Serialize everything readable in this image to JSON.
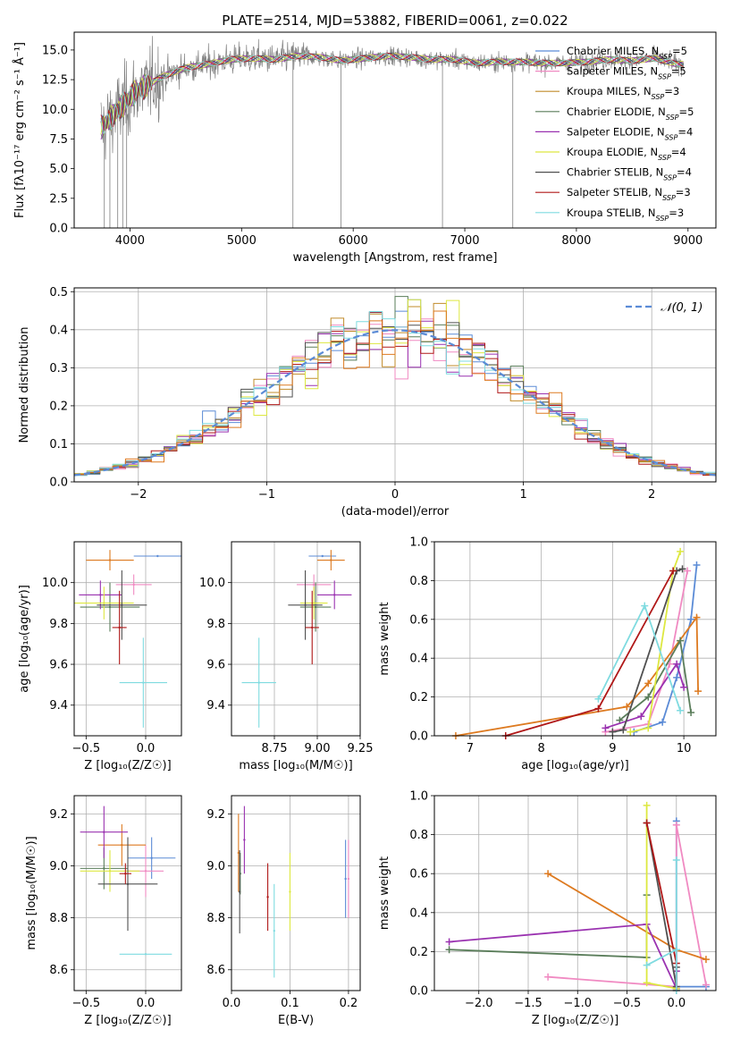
{
  "chart_data": [
    {
      "type": "line",
      "title": "PLATE=2514, MJD=53882, FIBERID=0061, z=0.022",
      "xlabel": "wavelength [Angstrom, rest frame]",
      "ylabel": "Flux [fλ10⁻¹⁷ erg cm⁻² s⁻¹ Å⁻¹]",
      "xlim": [
        3500,
        9250
      ],
      "ylim": [
        0,
        16.5
      ],
      "xticks": [
        4000,
        5000,
        6000,
        7000,
        8000,
        9000
      ],
      "yticks": [
        0.0,
        2.5,
        5.0,
        7.5,
        10.0,
        12.5,
        15.0
      ],
      "legend_position": "upper-right",
      "series": [
        {
          "name": "Chabrier MILES, N_SSP=5",
          "color": "#5b8bd6"
        },
        {
          "name": "Salpeter MILES, N_SSP=5",
          "color": "#f08ac2"
        },
        {
          "name": "Kroupa MILES, N_SSP=3",
          "color": "#c18b2a"
        },
        {
          "name": "Chabrier ELODIE, N_SSP=5",
          "color": "#5a7d5a"
        },
        {
          "name": "Salpeter ELODIE, N_SSP=4",
          "color": "#9a32b0"
        },
        {
          "name": "Kroupa ELODIE, N_SSP=4",
          "color": "#dde840"
        },
        {
          "name": "Chabrier STELIB, N_SSP=4",
          "color": "#505050"
        },
        {
          "name": "Salpeter STELIB, N_SSP=3",
          "color": "#b01818"
        },
        {
          "name": "Kroupa STELIB, N_SSP=3",
          "color": "#7fdbe0"
        }
      ],
      "data_color": "#808080",
      "continuum": {
        "x": [
          3750,
          3850,
          3950,
          4050,
          4150,
          4300,
          4500,
          4700,
          4900,
          5100,
          5300,
          5500,
          5700,
          5900,
          6100,
          6300,
          6500,
          6700,
          6900,
          7100,
          7300,
          7500,
          7700,
          7900,
          8100,
          8300,
          8500,
          8700,
          8900
        ],
        "y": [
          8.5,
          9.5,
          10.5,
          11.5,
          12.0,
          12.8,
          13.5,
          13.8,
          14.2,
          14.3,
          14.2,
          14.5,
          14.4,
          14.1,
          14.3,
          14.5,
          14.4,
          14.2,
          14.2,
          13.9,
          14.0,
          14.0,
          13.9,
          13.9,
          14.0,
          14.2,
          14.1,
          14.3,
          13.8
        ]
      }
    },
    {
      "type": "step",
      "xlabel": "(data-model)/error",
      "ylabel": "Normed distribution",
      "xlim": [
        -2.5,
        2.5
      ],
      "ylim": [
        0,
        0.51
      ],
      "xticks": [
        -2,
        -1,
        0,
        1,
        2
      ],
      "yticks": [
        0.0,
        0.1,
        0.2,
        0.3,
        0.4,
        0.5
      ],
      "grid": true,
      "reference": {
        "name": "𝒩(0, 1)",
        "color": "#5b8bd6",
        "style": "dashed"
      },
      "bin_width": 0.1,
      "bin_start": -2.5,
      "num_bins": 50
    },
    {
      "type": "scatter",
      "xlabel": "Z [log₁₀(Z/Z☉)]",
      "ylabel": "age  [log₁₀(age/yr)]",
      "xlim": [
        -0.6,
        0.3
      ],
      "ylim": [
        9.25,
        10.2
      ],
      "xticks": [
        -0.5,
        0.0
      ],
      "yticks": [
        9.4,
        9.6,
        9.8,
        10.0
      ],
      "points": [
        {
          "color": "#5b8bd6",
          "x": 0.1,
          "y": 10.13,
          "xerr": 0.2,
          "yerr": 0.0
        },
        {
          "color": "#f08ac2",
          "x": -0.1,
          "y": 9.99,
          "xerr": 0.15,
          "yerr": 0.05
        },
        {
          "color": "#dd7a20",
          "x": -0.3,
          "y": 10.11,
          "xerr": 0.2,
          "yerr": 0.05
        },
        {
          "color": "#5a7d5a",
          "x": -0.3,
          "y": 9.88,
          "xerr": 0.25,
          "yerr": 0.12
        },
        {
          "color": "#9a32b0",
          "x": -0.38,
          "y": 9.94,
          "xerr": 0.18,
          "yerr": 0.07
        },
        {
          "color": "#dde840",
          "x": -0.35,
          "y": 9.9,
          "xerr": 0.25,
          "yerr": 0.08
        },
        {
          "color": "#505050",
          "x": -0.2,
          "y": 9.89,
          "xerr": 0.21,
          "yerr": 0.17
        },
        {
          "color": "#b01818",
          "x": -0.22,
          "y": 9.78,
          "xerr": 0.06,
          "yerr": 0.18
        },
        {
          "color": "#7fdbe0",
          "x": -0.02,
          "y": 9.51,
          "xerr": 0.2,
          "yerr": 0.22
        }
      ]
    },
    {
      "type": "scatter",
      "xlabel": "mass [log₁₀(M/M☉)]",
      "xlim": [
        8.5,
        9.25
      ],
      "ylim": [
        9.25,
        10.2
      ],
      "xticks": [
        8.75,
        9.0,
        9.25
      ],
      "yticks": [
        9.4,
        9.6,
        9.8,
        10.0
      ],
      "points": [
        {
          "color": "#5b8bd6",
          "x": 9.03,
          "y": 10.13,
          "xerr": 0.08,
          "yerr": 0.0
        },
        {
          "color": "#f08ac2",
          "x": 8.98,
          "y": 9.99,
          "xerr": 0.1,
          "yerr": 0.05
        },
        {
          "color": "#dd7a20",
          "x": 9.08,
          "y": 10.11,
          "xerr": 0.08,
          "yerr": 0.05
        },
        {
          "color": "#5a7d5a",
          "x": 8.99,
          "y": 9.88,
          "xerr": 0.09,
          "yerr": 0.12
        },
        {
          "color": "#9a32b0",
          "x": 9.1,
          "y": 9.94,
          "xerr": 0.1,
          "yerr": 0.07
        },
        {
          "color": "#dde840",
          "x": 8.98,
          "y": 9.9,
          "xerr": 0.08,
          "yerr": 0.08
        },
        {
          "color": "#505050",
          "x": 8.93,
          "y": 9.89,
          "xerr": 0.1,
          "yerr": 0.17
        },
        {
          "color": "#b01818",
          "x": 8.97,
          "y": 9.78,
          "xerr": 0.04,
          "yerr": 0.18
        },
        {
          "color": "#7fdbe0",
          "x": 8.66,
          "y": 9.51,
          "xerr": 0.1,
          "yerr": 0.22
        }
      ]
    },
    {
      "type": "line",
      "xlabel": "age  [log₁₀(age/yr)]",
      "ylabel": "mass weight",
      "xlim": [
        6.5,
        10.45
      ],
      "ylim": [
        0,
        1.0
      ],
      "xticks": [
        7,
        8,
        9,
        10
      ],
      "yticks": [
        0.0,
        0.2,
        0.4,
        0.6,
        0.8,
        1.0
      ],
      "grid": true,
      "series": [
        {
          "color": "#5b8bd6",
          "x": [
            9.3,
            9.7,
            9.9,
            10.1,
            10.18
          ],
          "y": [
            0.02,
            0.07,
            0.3,
            0.6,
            0.88
          ]
        },
        {
          "color": "#f08ac2",
          "x": [
            8.9,
            9.5,
            9.8,
            10.05
          ],
          "y": [
            0.02,
            0.06,
            0.37,
            0.85
          ]
        },
        {
          "color": "#dd7a20",
          "x": [
            6.8,
            9.2,
            9.5,
            10.18,
            10.2
          ],
          "y": [
            0.0,
            0.15,
            0.27,
            0.61,
            0.23
          ]
        },
        {
          "color": "#5a7d5a",
          "x": [
            9.1,
            9.5,
            9.95,
            10.1
          ],
          "y": [
            0.08,
            0.2,
            0.49,
            0.12
          ]
        },
        {
          "color": "#9a32b0",
          "x": [
            8.9,
            9.4,
            9.9,
            10.0
          ],
          "y": [
            0.04,
            0.1,
            0.37,
            0.25
          ]
        },
        {
          "color": "#dde840",
          "x": [
            9.25,
            9.5,
            9.85,
            9.95
          ],
          "y": [
            0.02,
            0.04,
            0.85,
            0.95
          ]
        },
        {
          "color": "#505050",
          "x": [
            9.0,
            9.15,
            9.9,
            9.98
          ],
          "y": [
            0.02,
            0.03,
            0.85,
            0.86
          ]
        },
        {
          "color": "#b01818",
          "x": [
            7.5,
            8.8,
            9.85
          ],
          "y": [
            0.0,
            0.14,
            0.85
          ]
        },
        {
          "color": "#7fdbe0",
          "x": [
            8.8,
            9.45,
            9.95
          ],
          "y": [
            0.19,
            0.67,
            0.13
          ]
        }
      ]
    },
    {
      "type": "scatter",
      "xlabel": "Z [log₁₀(Z/Z☉)]",
      "ylabel": "mass [log₁₀(M/M☉)]",
      "xlim": [
        -0.6,
        0.3
      ],
      "ylim": [
        8.52,
        9.27
      ],
      "xticks": [
        -0.5,
        0.0
      ],
      "yticks": [
        8.6,
        8.8,
        9.0,
        9.2
      ],
      "points": [
        {
          "color": "#5b8bd6",
          "x": 0.05,
          "y": 9.03,
          "xerr": 0.2,
          "yerr": 0.08
        },
        {
          "color": "#f08ac2",
          "x": 0.0,
          "y": 8.98,
          "xerr": 0.15,
          "yerr": 0.1
        },
        {
          "color": "#dd7a20",
          "x": -0.2,
          "y": 9.08,
          "xerr": 0.2,
          "yerr": 0.08
        },
        {
          "color": "#5a7d5a",
          "x": -0.35,
          "y": 8.99,
          "xerr": 0.2,
          "yerr": 0.08
        },
        {
          "color": "#9a32b0",
          "x": -0.35,
          "y": 9.13,
          "xerr": 0.2,
          "yerr": 0.1
        },
        {
          "color": "#dde840",
          "x": -0.3,
          "y": 8.98,
          "xerr": 0.25,
          "yerr": 0.08
        },
        {
          "color": "#505050",
          "x": -0.15,
          "y": 8.93,
          "xerr": 0.25,
          "yerr": 0.18
        },
        {
          "color": "#b01818",
          "x": -0.17,
          "y": 8.97,
          "xerr": 0.05,
          "yerr": 0.04
        },
        {
          "color": "#7fdbe0",
          "x": 0.0,
          "y": 8.66,
          "xerr": 0.22,
          "yerr": 0.0
        }
      ]
    },
    {
      "type": "scatter",
      "xlabel": "E(B-V)",
      "xlim": [
        0.0,
        0.22
      ],
      "ylim": [
        8.52,
        9.27
      ],
      "xticks": [
        0.0,
        0.1,
        0.2
      ],
      "yticks": [
        8.6,
        8.8,
        9.0,
        9.2
      ],
      "points": [
        {
          "color": "#5b8bd6",
          "x": 0.195,
          "y": 8.95,
          "yerr": 0.15
        },
        {
          "color": "#f08ac2",
          "x": 0.2,
          "y": 8.95,
          "yerr": 0.15
        },
        {
          "color": "#dd7a20",
          "x": 0.012,
          "y": 9.05,
          "yerr": 0.15
        },
        {
          "color": "#5a7d5a",
          "x": 0.015,
          "y": 8.97,
          "yerr": 0.08
        },
        {
          "color": "#9a32b0",
          "x": 0.022,
          "y": 9.1,
          "yerr": 0.13
        },
        {
          "color": "#dde840",
          "x": 0.1,
          "y": 8.9,
          "yerr": 0.15
        },
        {
          "color": "#505050",
          "x": 0.014,
          "y": 8.9,
          "yerr": 0.16
        },
        {
          "color": "#b01818",
          "x": 0.062,
          "y": 8.88,
          "yerr": 0.13
        },
        {
          "color": "#7fdbe0",
          "x": 0.073,
          "y": 8.75,
          "yerr": 0.18
        }
      ]
    },
    {
      "type": "line",
      "xlabel": "Z [log₁₀(Z/Z☉)]",
      "ylabel": "mass weight",
      "xlim": [
        -2.45,
        0.4
      ],
      "ylim": [
        0,
        1.0
      ],
      "xticks": [
        -2.0,
        -1.5,
        -1.0,
        -0.5,
        0.0
      ],
      "yticks": [
        0.0,
        0.2,
        0.4,
        0.6,
        0.8,
        1.0
      ],
      "grid": true,
      "series": [
        {
          "color": "#5b8bd6",
          "x": [
            0.0,
            0.0,
            0.3
          ],
          "y": [
            0.87,
            0.02,
            0.02
          ]
        },
        {
          "color": "#f08ac2",
          "x": [
            -1.3,
            0.0,
            0.0,
            0.3
          ],
          "y": [
            0.07,
            0.02,
            0.85,
            0.03
          ]
        },
        {
          "color": "#dd7a20",
          "x": [
            -1.3,
            0.0,
            0.3
          ],
          "y": [
            0.6,
            0.21,
            0.16
          ]
        },
        {
          "color": "#5a7d5a",
          "x": [
            -2.3,
            -0.3,
            -0.3
          ],
          "y": [
            0.21,
            0.17,
            0.49
          ]
        },
        {
          "color": "#9a32b0",
          "x": [
            -2.3,
            -0.3,
            0.0,
            0.0
          ],
          "y": [
            0.25,
            0.34,
            0.01,
            0.1
          ]
        },
        {
          "color": "#dde840",
          "x": [
            -0.3,
            -0.3,
            0.0
          ],
          "y": [
            0.95,
            0.04,
            0.01
          ]
        },
        {
          "color": "#505050",
          "x": [
            -0.3,
            0.0,
            0.0
          ],
          "y": [
            0.86,
            0.02,
            0.12
          ]
        },
        {
          "color": "#b01818",
          "x": [
            -0.3,
            0.0,
            0.0
          ],
          "y": [
            0.86,
            0.14,
            0.0
          ]
        },
        {
          "color": "#7fdbe0",
          "x": [
            -0.3,
            0.0,
            0.0,
            0.0
          ],
          "y": [
            0.13,
            0.21,
            0.67,
            0.0
          ]
        }
      ]
    }
  ]
}
